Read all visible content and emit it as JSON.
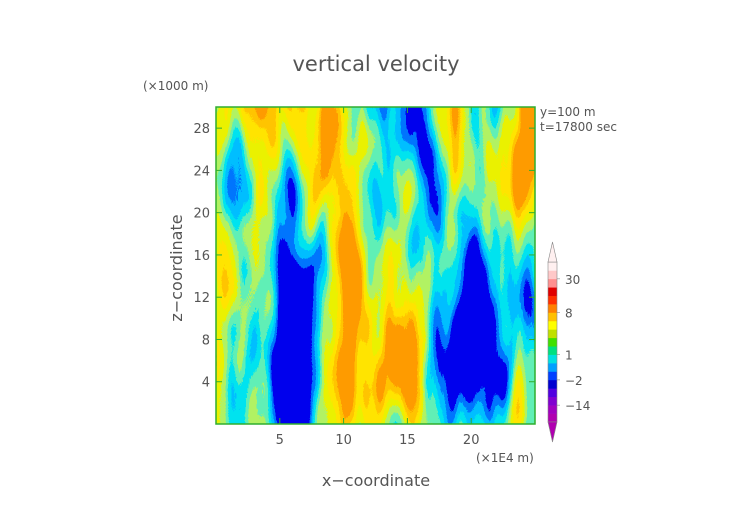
{
  "chart_data": {
    "type": "heatmap",
    "title": "vertical velocity",
    "xlabel": "x−coordinate",
    "ylabel": "z−coordinate",
    "x_unit": "(×1E4 m)",
    "y_unit": "(×1000 m)",
    "info_lines": [
      "y=100 m",
      "t=17800 sec"
    ],
    "xlim": [
      0,
      25
    ],
    "ylim": [
      0,
      30
    ],
    "x_ticks": [
      5,
      10,
      15,
      20
    ],
    "y_ticks": [
      4,
      8,
      12,
      16,
      20,
      24,
      28
    ],
    "colorbar": {
      "levels": [
        -26,
        -20,
        -14,
        -8,
        -5,
        -2,
        -1,
        0,
        1,
        2,
        3,
        4,
        5,
        8,
        14,
        20,
        26,
        30,
        36
      ],
      "labeled_ticks": [
        {
          "value": 30,
          "label": "30"
        },
        {
          "value": 8,
          "label": "8"
        },
        {
          "value": 1,
          "label": "1"
        },
        {
          "value": -2,
          "label": "−2"
        },
        {
          "value": -14,
          "label": "−14"
        }
      ],
      "colors": [
        "#b000b0",
        "#a000c0",
        "#8000d0",
        "#5000e0",
        "#0000d0",
        "#0040ff",
        "#00a0ff",
        "#00e0e0",
        "#00e080",
        "#40e000",
        "#c0e000",
        "#ffff00",
        "#ffc000",
        "#ff8000",
        "#ff3000",
        "#e00000",
        "#ff9090",
        "#ffc8c8",
        "#fff0f0"
      ],
      "extend": "both"
    }
  }
}
